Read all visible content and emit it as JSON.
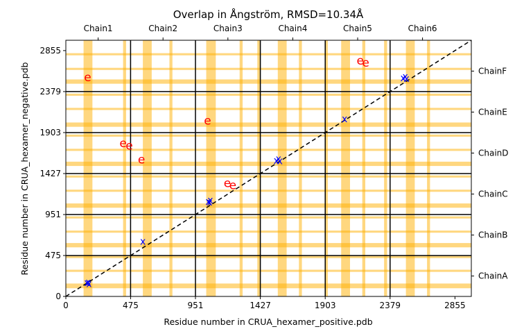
{
  "chart_data": {
    "type": "scatter",
    "title": "Overlap in Ångström, RMSD=10.34Å",
    "xlabel": "Residue number in CRUA_hexamer_positive.pdb",
    "ylabel": "Residue number in CRUA_hexamer_negative.pdb",
    "xlim": [
      0,
      2975
    ],
    "ylim": [
      0,
      2975
    ],
    "x_ticks": [
      0,
      475,
      951,
      1427,
      1903,
      2379,
      2855
    ],
    "y_ticks": [
      0,
      475,
      951,
      1427,
      1903,
      2379,
      2855
    ],
    "chain_boundaries": [
      475,
      951,
      1427,
      1903,
      2379
    ],
    "top_labels": [
      {
        "label": "Chain1",
        "value": 237
      },
      {
        "label": "Chain2",
        "value": 713
      },
      {
        "label": "Chain3",
        "value": 1189
      },
      {
        "label": "Chain4",
        "value": 1665
      },
      {
        "label": "Chain5",
        "value": 2141
      },
      {
        "label": "Chain6",
        "value": 2617
      }
    ],
    "right_labels": [
      {
        "label": "ChainA",
        "value": 237
      },
      {
        "label": "ChainB",
        "value": 713
      },
      {
        "label": "ChainC",
        "value": 1189
      },
      {
        "label": "ChainD",
        "value": 1665
      },
      {
        "label": "ChainE",
        "value": 2141
      },
      {
        "label": "ChainF",
        "value": 2617
      }
    ],
    "highlight_color": "#ffb000",
    "x_bands": [
      {
        "start": 130,
        "width": 65
      },
      {
        "start": 420,
        "width": 22
      },
      {
        "start": 565,
        "width": 65
      },
      {
        "start": 760,
        "width": 22
      },
      {
        "start": 1030,
        "width": 70
      },
      {
        "start": 1275,
        "width": 22
      },
      {
        "start": 1405,
        "width": 22
      },
      {
        "start": 1555,
        "width": 65
      },
      {
        "start": 1710,
        "width": 22
      },
      {
        "start": 1900,
        "width": 22
      },
      {
        "start": 2020,
        "width": 65
      },
      {
        "start": 2175,
        "width": 22
      },
      {
        "start": 2335,
        "width": 22
      },
      {
        "start": 2495,
        "width": 65
      },
      {
        "start": 2650,
        "width": 22
      }
    ],
    "y_bands": [
      {
        "start": 95,
        "width": 55
      },
      {
        "start": 285,
        "width": 25
      },
      {
        "start": 445,
        "width": 25
      },
      {
        "start": 570,
        "width": 50
      },
      {
        "start": 740,
        "width": 25
      },
      {
        "start": 905,
        "width": 25
      },
      {
        "start": 1030,
        "width": 50
      },
      {
        "start": 1215,
        "width": 25
      },
      {
        "start": 1380,
        "width": 25
      },
      {
        "start": 1515,
        "width": 50
      },
      {
        "start": 1690,
        "width": 25
      },
      {
        "start": 1855,
        "width": 25
      },
      {
        "start": 1970,
        "width": 50
      },
      {
        "start": 2165,
        "width": 25
      },
      {
        "start": 2330,
        "width": 25
      },
      {
        "start": 2470,
        "width": 50
      },
      {
        "start": 2630,
        "width": 25
      },
      {
        "start": 2800,
        "width": 25
      }
    ],
    "diagonal": {
      "from": [
        0,
        0
      ],
      "to": [
        2975,
        2975
      ],
      "style": "dashed",
      "color": "#000000"
    },
    "series": [
      {
        "marker": "x",
        "color": "#0000ff",
        "points": [
          [
            155,
            160
          ],
          [
            165,
            170
          ],
          [
            170,
            150
          ],
          [
            565,
            640
          ],
          [
            1045,
            1105
          ],
          [
            1060,
            1120
          ],
          [
            1055,
            1095
          ],
          [
            1545,
            1580
          ],
          [
            1560,
            1600
          ],
          [
            1570,
            1575
          ],
          [
            2045,
            2065
          ],
          [
            2475,
            2540
          ],
          [
            2490,
            2555
          ],
          [
            2500,
            2530
          ]
        ]
      },
      {
        "marker": "e",
        "color": "#ff0000",
        "points": [
          [
            160,
            2540
          ],
          [
            420,
            1775
          ],
          [
            465,
            1745
          ],
          [
            555,
            1585
          ],
          [
            1040,
            2035
          ],
          [
            1185,
            1310
          ],
          [
            1225,
            1285
          ],
          [
            2160,
            2735
          ],
          [
            2200,
            2710
          ]
        ]
      }
    ]
  }
}
